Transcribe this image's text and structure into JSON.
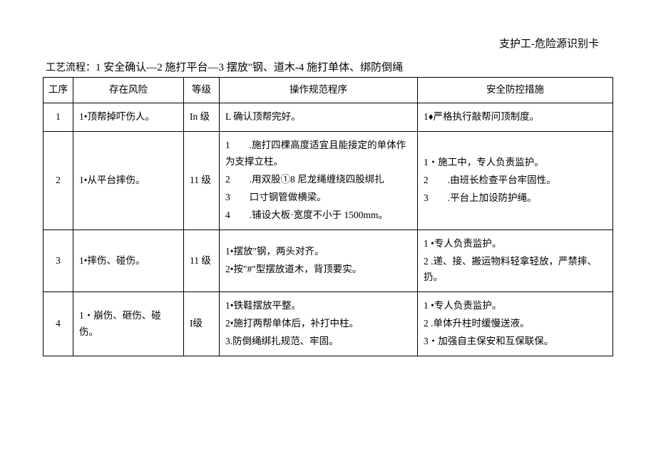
{
  "title": "支护工-危险源识别卡",
  "subtitle_prefix": "工艺流程：",
  "subtitle_steps": "1 安全确认—2 施打平台—3 摆放\"钢、道木-4 施打单体、绑防倒绳",
  "headers": {
    "seq": "工序",
    "risk": "存在风险",
    "level": "等级",
    "op": "操作规范程序",
    "safety": "安全防控措施"
  },
  "rows": [
    {
      "seq": "1",
      "risk": "1•顶帮掉吓伤人。",
      "level": "In 级",
      "ops": [
        "L 确认顶帮完好。"
      ],
      "safety": [
        "1♦严格执行敲帮问顶制度。"
      ]
    },
    {
      "seq": "2",
      "risk": "1•从平台摔伤。",
      "level": "11 级",
      "ops": [
        "1　　.施打四棵高度适宜且能接定的单体作为支撑立柱。",
        "2　　.用双股①8 尼龙绳缠绕四股绑扎",
        "3　　口寸钢管做横梁。",
        "4　　.铺设大板·宽度不小于 1500mm。"
      ],
      "safety": [
        "1・施工中，专人负责监护。",
        "2　　.由班长检查平台牢固性。",
        "3　　.平台上加设防护绳。"
      ]
    },
    {
      "seq": "3",
      "risk": "1•摔伤、碰伤。",
      "level": "11 级",
      "ops": [
        "1•摆放\"钢，两头对齐。",
        "2•按\"#\"型摆放道木，背顶要实。"
      ],
      "safety": [
        "1 •专人负责监护。",
        "2 .递、接、搬运物料轻拿轻放，严禁摔、扔。"
      ]
    },
    {
      "seq": "4",
      "risk": "1・崩伤、砸伤、碰伤。",
      "level": "I级",
      "ops": [
        "1•铁鞋摆放平整。",
        "2•施打两帮单体后，补打中柱。",
        "3.防倒绳绑扎规范、牢固。"
      ],
      "safety": [
        "1 •专人负责监护。",
        "2 .单体升柱时缓慢送液。",
        "3・加强自主保安和互保联保。"
      ]
    }
  ],
  "colors": {
    "background": "#ffffff",
    "text": "#000000",
    "border": "#000000"
  }
}
